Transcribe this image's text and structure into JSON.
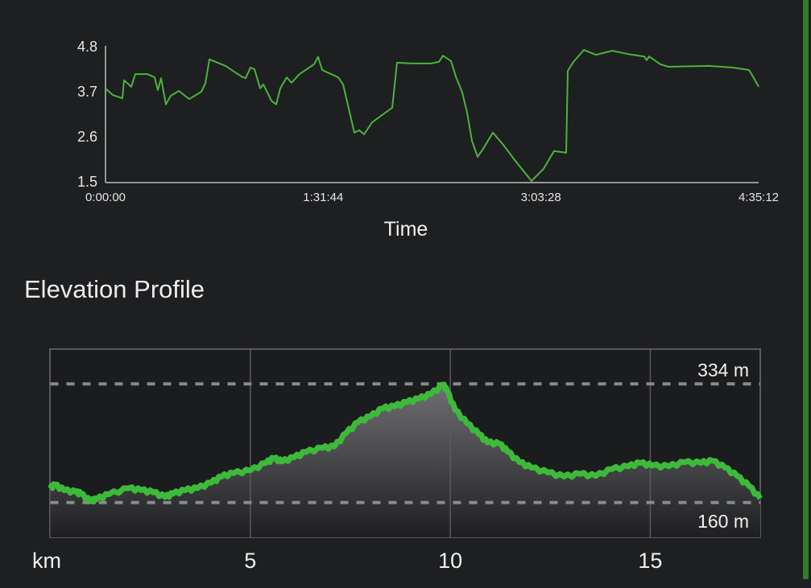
{
  "section_title": "Elevation Profile",
  "colors": {
    "background": "#1e1f21",
    "line": "#4cb33c",
    "elevation_line": "#3dba3a",
    "accent_bar": "#2f7a2f"
  },
  "chart_data": [
    {
      "type": "line",
      "xlabel": "Time",
      "ylabel": "",
      "x_tick_labels": [
        "0:00:00",
        "1:31:44",
        "3:03:28",
        "4:35:12"
      ],
      "x_ticks_seconds": [
        0,
        5504,
        11008,
        16512
      ],
      "y_tick_labels": [
        "4.8",
        "3.7",
        "2.6",
        "1.5"
      ],
      "y_ticks": [
        4.8,
        3.7,
        2.6,
        1.5
      ],
      "xlim_seconds": [
        0,
        16512
      ],
      "ylim": [
        1.5,
        4.8
      ],
      "grid": false,
      "series": [
        {
          "x_seconds": [
            0,
            183,
            428,
            468,
            652,
            753,
            1059,
            1242,
            1323,
            1405,
            1527,
            1649,
            1853,
            2117,
            2423,
            2525,
            2626,
            3034,
            3441,
            3543,
            3665,
            3767,
            3909,
            3991,
            4194,
            4316,
            4418,
            4581,
            4703,
            4907,
            5273,
            5375,
            5477,
            5884,
            6006,
            6291,
            6413,
            6535,
            6739,
            7105,
            7248,
            7370,
            7757,
            8225,
            8429,
            8531,
            8734,
            8857,
            9019,
            9141,
            9263,
            9406,
            9549,
            9793,
            10058,
            10363,
            10770,
            11076,
            11340,
            11646,
            11687,
            11829,
            12094,
            12399,
            12806,
            13214,
            13621,
            13682,
            13743,
            14028,
            14232,
            15250,
            15861,
            16268,
            16369,
            16512
          ],
          "values": [
            3.76,
            3.6,
            3.52,
            3.96,
            3.8,
            4.11,
            4.11,
            4.03,
            3.72,
            4.01,
            3.37,
            3.58,
            3.7,
            3.5,
            3.68,
            3.88,
            4.47,
            4.31,
            4.05,
            4.01,
            4.27,
            4.23,
            3.76,
            3.86,
            3.46,
            3.37,
            3.76,
            4.03,
            3.9,
            4.11,
            4.35,
            4.53,
            4.21,
            4.03,
            3.86,
            2.68,
            2.74,
            2.64,
            2.93,
            3.19,
            3.29,
            4.39,
            4.37,
            4.37,
            4.41,
            4.56,
            4.43,
            4.05,
            3.66,
            3.17,
            2.48,
            2.09,
            2.29,
            2.68,
            2.38,
            1.99,
            1.5,
            1.8,
            2.23,
            2.19,
            4.19,
            4.41,
            4.7,
            4.58,
            4.68,
            4.6,
            4.54,
            4.45,
            4.54,
            4.35,
            4.29,
            4.31,
            4.27,
            4.21,
            4.05,
            3.8
          ]
        }
      ]
    },
    {
      "type": "area",
      "title": "Elevation Profile",
      "xlabel": "km",
      "x_tick_labels": [
        "5",
        "10",
        "15"
      ],
      "x_ticks": [
        5,
        10,
        15
      ],
      "xlim": [
        0,
        17.75
      ],
      "ylim": [
        109,
        385
      ],
      "grid": true,
      "reference_lines": [
        {
          "value": 334,
          "label": "334 m"
        },
        {
          "value": 160,
          "label": "160 m"
        }
      ],
      "series": [
        {
          "x": [
            0,
            0.11,
            0.35,
            0.65,
            0.76,
            1.0,
            1.16,
            1.46,
            1.96,
            2.27,
            2.57,
            2.87,
            3.07,
            3.37,
            3.68,
            4.02,
            4.28,
            4.58,
            5.0,
            5.39,
            5.59,
            5.79,
            6.09,
            6.39,
            6.8,
            7.1,
            7.4,
            7.7,
            8.0,
            8.31,
            8.61,
            8.91,
            9.21,
            9.52,
            9.82,
            9.92,
            10.12,
            10.42,
            10.72,
            10.93,
            11.23,
            11.43,
            11.73,
            12.03,
            12.44,
            12.84,
            13.24,
            13.64,
            14.04,
            14.45,
            14.75,
            15.05,
            15.46,
            15.86,
            16.26,
            16.56,
            16.87,
            17.17,
            17.47,
            17.75
          ],
          "values": [
            181,
            186,
            178,
            175,
            173,
            162,
            165,
            172,
            181,
            178,
            175,
            168,
            173,
            178,
            181,
            189,
            198,
            203,
            207,
            218,
            225,
            220,
            226,
            234,
            240,
            242,
            262,
            278,
            286,
            298,
            301,
            307,
            312,
            319,
            333,
            324,
            296,
            276,
            260,
            248,
            246,
            235,
            219,
            211,
            204,
            198,
            202,
            199,
            209,
            213,
            218,
            214,
            213,
            219,
            218,
            221,
            211,
            199,
            184,
            166
          ]
        }
      ]
    }
  ]
}
